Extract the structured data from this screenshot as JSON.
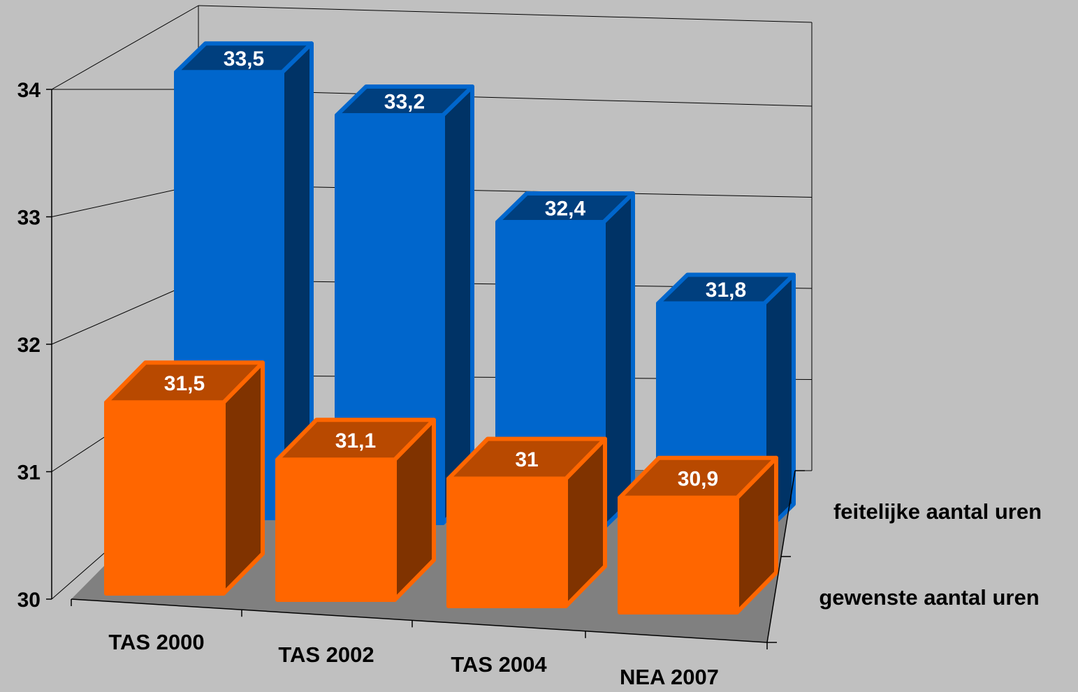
{
  "chart_data": {
    "type": "bar",
    "categories": [
      "TAS 2000",
      "TAS 2002",
      "TAS 2004",
      "NEA 2007"
    ],
    "series": [
      {
        "name": "feitelijke aantal uren",
        "values": [
          33.5,
          33.2,
          32.4,
          31.8
        ],
        "labels": [
          "33,5",
          "33,2",
          "32,4",
          "31,8"
        ],
        "color": "#0066cc"
      },
      {
        "name": "gewenste aantal uren",
        "values": [
          31.5,
          31.1,
          31.0,
          30.9
        ],
        "labels": [
          "31,5",
          "31,1",
          "31",
          "30,9"
        ],
        "color": "#ff6600"
      }
    ],
    "ylim": [
      30,
      34
    ],
    "yticks": [
      "30",
      "31",
      "32",
      "33",
      "34"
    ],
    "grid": true,
    "projection": "3d",
    "background": "#c0c0c0",
    "floor_color": "#808080"
  }
}
